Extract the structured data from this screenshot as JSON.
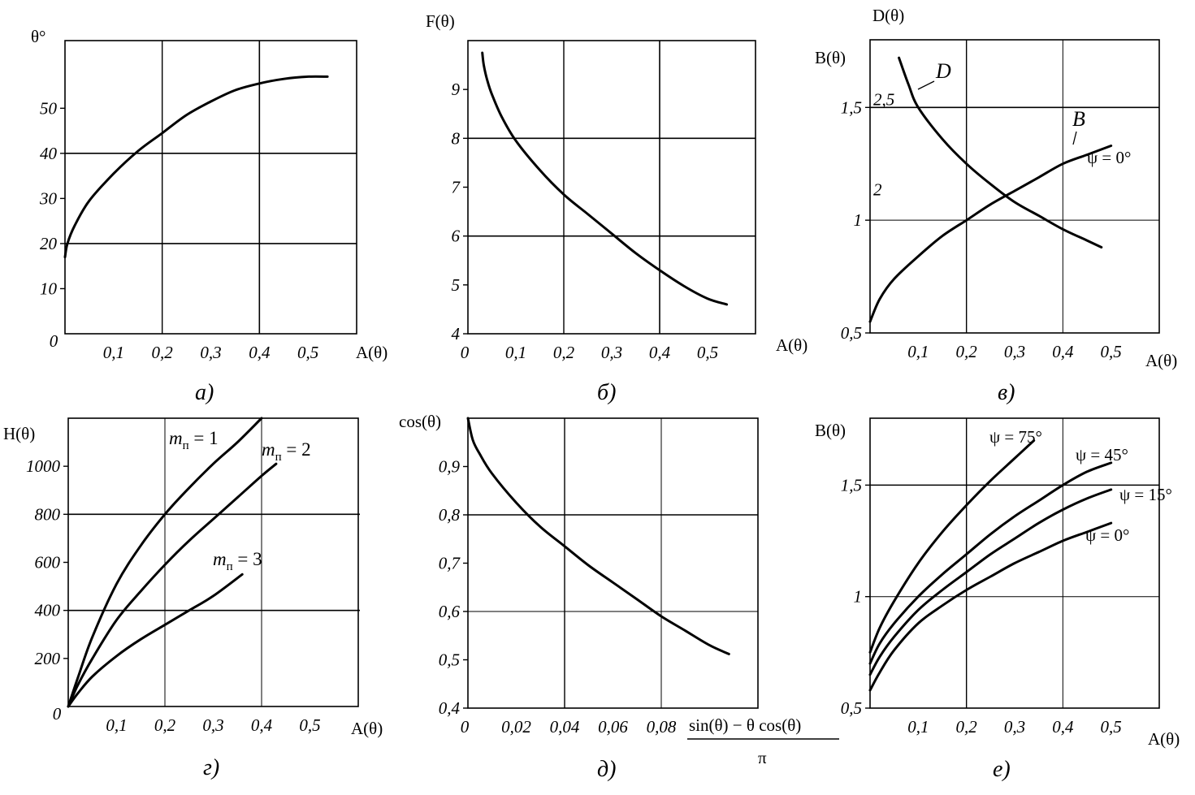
{
  "chart_data": [
    {
      "id": "a",
      "type": "line",
      "caption": "а)",
      "xlabel": "A(θ)",
      "ylabel": "θ°",
      "xlim": [
        0,
        0.6
      ],
      "ylim": [
        0,
        65
      ],
      "x_ticks": [
        {
          "v": 0.1,
          "t": "0,1"
        },
        {
          "v": 0.2,
          "t": "0,2"
        },
        {
          "v": 0.3,
          "t": "0,3"
        },
        {
          "v": 0.4,
          "t": "0,4"
        },
        {
          "v": 0.5,
          "t": "0,5"
        }
      ],
      "y_ticks": [
        {
          "v": 10,
          "t": "10"
        },
        {
          "v": 20,
          "t": "20"
        },
        {
          "v": 30,
          "t": "30"
        },
        {
          "v": 40,
          "t": "40"
        },
        {
          "v": 50,
          "t": "50"
        }
      ],
      "origin_label": "0",
      "grid_x": [
        0.2,
        0.4
      ],
      "grid_y": [
        20,
        40
      ],
      "grid": true,
      "series": [
        {
          "x": [
            0,
            0.005,
            0.02,
            0.05,
            0.1,
            0.15,
            0.2,
            0.25,
            0.3,
            0.35,
            0.4,
            0.45,
            0.5,
            0.54
          ],
          "y": [
            17,
            20,
            24,
            29.5,
            35.5,
            40.5,
            44.5,
            48.5,
            51.5,
            54,
            55.5,
            56.5,
            57,
            57
          ]
        }
      ]
    },
    {
      "id": "b",
      "type": "line",
      "caption": "б)",
      "xlabel": "A(θ)",
      "ylabel": "F(θ)",
      "xlim": [
        0,
        0.6
      ],
      "ylim": [
        4,
        10
      ],
      "x_ticks": [
        {
          "v": 0.1,
          "t": "0,1"
        },
        {
          "v": 0.2,
          "t": "0,2"
        },
        {
          "v": 0.3,
          "t": "0,3"
        },
        {
          "v": 0.4,
          "t": "0,4"
        },
        {
          "v": 0.5,
          "t": "0,5"
        }
      ],
      "y_ticks": [
        {
          "v": 4,
          "t": "4"
        },
        {
          "v": 5,
          "t": "5"
        },
        {
          "v": 6,
          "t": "6"
        },
        {
          "v": 7,
          "t": "7"
        },
        {
          "v": 8,
          "t": "8"
        },
        {
          "v": 9,
          "t": "9"
        }
      ],
      "origin_label": "0",
      "grid_x": [
        0.2,
        0.4
      ],
      "grid_y": [
        6,
        8
      ],
      "grid": true,
      "series": [
        {
          "x": [
            0.03,
            0.033,
            0.04,
            0.05,
            0.07,
            0.1,
            0.15,
            0.2,
            0.25,
            0.3,
            0.35,
            0.4,
            0.45,
            0.5,
            0.54
          ],
          "y": [
            9.75,
            9.5,
            9.2,
            8.9,
            8.45,
            7.95,
            7.35,
            6.85,
            6.45,
            6.05,
            5.65,
            5.3,
            4.98,
            4.72,
            4.6
          ]
        }
      ]
    },
    {
      "id": "v",
      "type": "line",
      "caption": "в)",
      "xlabel": "A(θ)",
      "ylabel": "B(θ)",
      "ylabel2": "D(θ)",
      "xlim": [
        0,
        0.6
      ],
      "ylim": [
        0.5,
        1.8
      ],
      "x_ticks": [
        {
          "v": 0.1,
          "t": "0,1"
        },
        {
          "v": 0.2,
          "t": "0,2"
        },
        {
          "v": 0.3,
          "t": "0,3"
        },
        {
          "v": 0.4,
          "t": "0,4"
        },
        {
          "v": 0.5,
          "t": "0,5"
        }
      ],
      "y_ticks": [
        {
          "v": 0.5,
          "t": "0,5"
        },
        {
          "v": 1,
          "t": "1"
        },
        {
          "v": 1.5,
          "t": "1,5"
        }
      ],
      "y2_ticks": [
        {
          "v": 1.5,
          "t": "2,5"
        },
        {
          "v": 1.1,
          "t": "2"
        }
      ],
      "grid_x": [
        0.2,
        0.4
      ],
      "grid_y": [
        1,
        1.5
      ],
      "grid": true,
      "series": [
        {
          "name": "B",
          "x": [
            0,
            0.02,
            0.05,
            0.1,
            0.15,
            0.2,
            0.25,
            0.3,
            0.35,
            0.4,
            0.45,
            0.5
          ],
          "y": [
            0.55,
            0.65,
            0.74,
            0.84,
            0.93,
            1.0,
            1.07,
            1.13,
            1.19,
            1.25,
            1.29,
            1.33
          ]
        },
        {
          "name": "D",
          "x": [
            0.06,
            0.08,
            0.1,
            0.15,
            0.2,
            0.25,
            0.3,
            0.35,
            0.4,
            0.45,
            0.48
          ],
          "y": [
            1.72,
            1.6,
            1.5,
            1.36,
            1.25,
            1.16,
            1.08,
            1.02,
            0.96,
            0.91,
            0.88
          ]
        }
      ],
      "annotations": [
        "D",
        "B",
        "ψ = 0°"
      ]
    },
    {
      "id": "g",
      "type": "line",
      "caption": "г)",
      "xlabel": "A(θ)",
      "ylabel": "H(θ)",
      "xlim": [
        0,
        0.6
      ],
      "ylim": [
        0,
        1200
      ],
      "x_ticks": [
        {
          "v": 0.1,
          "t": "0,1"
        },
        {
          "v": 0.2,
          "t": "0,2"
        },
        {
          "v": 0.3,
          "t": "0,3"
        },
        {
          "v": 0.4,
          "t": "0,4"
        },
        {
          "v": 0.5,
          "t": "0,5"
        }
      ],
      "y_ticks": [
        {
          "v": 200,
          "t": "200"
        },
        {
          "v": 400,
          "t": "400"
        },
        {
          "v": 600,
          "t": "600"
        },
        {
          "v": 800,
          "t": "800"
        },
        {
          "v": 1000,
          "t": "1000"
        }
      ],
      "origin_label": "0",
      "grid_x": [
        0.2,
        0.4
      ],
      "grid_y": [
        400,
        800
      ],
      "grid": true,
      "series": [
        {
          "name": "mп = 1",
          "x": [
            0,
            0.02,
            0.05,
            0.1,
            0.15,
            0.2,
            0.25,
            0.3,
            0.35,
            0.4
          ],
          "y": [
            0,
            120,
            290,
            510,
            670,
            800,
            910,
            1010,
            1100,
            1200
          ]
        },
        {
          "name": "mп = 2",
          "x": [
            0,
            0.02,
            0.05,
            0.1,
            0.15,
            0.2,
            0.25,
            0.3,
            0.35,
            0.4,
            0.43
          ],
          "y": [
            0,
            90,
            200,
            360,
            480,
            590,
            690,
            780,
            870,
            960,
            1010
          ]
        },
        {
          "name": "mп = 3",
          "x": [
            0,
            0.02,
            0.05,
            0.1,
            0.15,
            0.2,
            0.25,
            0.3,
            0.36
          ],
          "y": [
            0,
            55,
            125,
            210,
            280,
            340,
            400,
            460,
            550
          ]
        }
      ]
    },
    {
      "id": "d",
      "type": "line",
      "caption": "д)",
      "xlabel_num": "sin(θ) − θ cos(θ)",
      "xlabel_den": "π",
      "ylabel": "cos(θ)",
      "xlim": [
        0,
        0.12
      ],
      "ylim": [
        0.4,
        1.0
      ],
      "x_ticks": [
        {
          "v": 0.02,
          "t": "0,02"
        },
        {
          "v": 0.04,
          "t": "0,04"
        },
        {
          "v": 0.06,
          "t": "0,06"
        },
        {
          "v": 0.08,
          "t": "0,08"
        }
      ],
      "y_ticks": [
        {
          "v": 0.4,
          "t": "0,4"
        },
        {
          "v": 0.5,
          "t": "0,5"
        },
        {
          "v": 0.6,
          "t": "0,6"
        },
        {
          "v": 0.7,
          "t": "0,7"
        },
        {
          "v": 0.8,
          "t": "0,8"
        },
        {
          "v": 0.9,
          "t": "0,9"
        }
      ],
      "origin_label": "0",
      "grid_x": [
        0.04,
        0.08
      ],
      "grid_y": [
        0.6,
        0.8
      ],
      "grid": true,
      "series": [
        {
          "x": [
            0,
            0.002,
            0.005,
            0.01,
            0.02,
            0.03,
            0.04,
            0.05,
            0.06,
            0.07,
            0.08,
            0.09,
            0.1,
            0.108
          ],
          "y": [
            1.0,
            0.955,
            0.925,
            0.885,
            0.825,
            0.775,
            0.735,
            0.695,
            0.66,
            0.625,
            0.59,
            0.56,
            0.53,
            0.512
          ]
        }
      ]
    },
    {
      "id": "e",
      "type": "line",
      "caption": "е)",
      "xlabel": "A(θ)",
      "ylabel": "B(θ)",
      "xlim": [
        0,
        0.6
      ],
      "ylim": [
        0.5,
        1.8
      ],
      "x_ticks": [
        {
          "v": 0.1,
          "t": "0,1"
        },
        {
          "v": 0.2,
          "t": "0,2"
        },
        {
          "v": 0.3,
          "t": "0,3"
        },
        {
          "v": 0.4,
          "t": "0,4"
        },
        {
          "v": 0.5,
          "t": "0,5"
        }
      ],
      "y_ticks": [
        {
          "v": 0.5,
          "t": "0,5"
        },
        {
          "v": 1,
          "t": "1"
        },
        {
          "v": 1.5,
          "t": "1,5"
        }
      ],
      "grid_x": [
        0.2,
        0.4
      ],
      "grid_y": [
        1,
        1.5
      ],
      "grid": true,
      "series": [
        {
          "name": "ψ = 75°",
          "x": [
            0,
            0.02,
            0.05,
            0.1,
            0.15,
            0.2,
            0.25,
            0.3,
            0.34
          ],
          "y": [
            0.75,
            0.86,
            0.98,
            1.15,
            1.29,
            1.41,
            1.52,
            1.62,
            1.7
          ]
        },
        {
          "name": "ψ = 45°",
          "x": [
            0,
            0.02,
            0.05,
            0.1,
            0.15,
            0.2,
            0.25,
            0.3,
            0.35,
            0.4,
            0.45,
            0.5
          ],
          "y": [
            0.7,
            0.79,
            0.88,
            1.0,
            1.1,
            1.19,
            1.28,
            1.36,
            1.43,
            1.5,
            1.56,
            1.6
          ]
        },
        {
          "name": "ψ = 15°",
          "x": [
            0,
            0.02,
            0.05,
            0.1,
            0.15,
            0.2,
            0.25,
            0.3,
            0.35,
            0.4,
            0.45,
            0.5
          ],
          "y": [
            0.65,
            0.73,
            0.82,
            0.94,
            1.03,
            1.11,
            1.19,
            1.26,
            1.33,
            1.39,
            1.44,
            1.48
          ]
        },
        {
          "name": "ψ = 0°",
          "x": [
            0,
            0.02,
            0.05,
            0.1,
            0.15,
            0.2,
            0.25,
            0.3,
            0.35,
            0.4,
            0.45,
            0.5
          ],
          "y": [
            0.58,
            0.66,
            0.76,
            0.88,
            0.96,
            1.03,
            1.09,
            1.15,
            1.2,
            1.25,
            1.29,
            1.33
          ]
        }
      ]
    }
  ],
  "labels": {
    "a_ylabel": "θ°",
    "a_xlabel": "A(θ)",
    "a_caption": "а)",
    "b_ylabel": "F(θ)",
    "b_xlabel": "A(θ)",
    "b_caption": "б)",
    "v_ylabel_top": "D(θ)",
    "v_ylabel": "B(θ)",
    "v_xlabel": "A(θ)",
    "v_caption": "в)",
    "v_label_D": "D",
    "v_label_B": "B",
    "v_label_psi": "ψ = 0°",
    "g_ylabel": "H(θ)",
    "g_xlabel": "A(θ)",
    "g_caption": "г)",
    "g_m1_m": "m",
    "g_m1_sub": "п",
    "g_m1_eq": " = 1",
    "g_m2_m": "m",
    "g_m2_sub": "п",
    "g_m2_eq": " = 2",
    "g_m3_m": "m",
    "g_m3_sub": "п",
    "g_m3_eq": " = 3",
    "d_ylabel": "cos(θ)",
    "d_xlabel_num": "sin(θ) − θ cos(θ)",
    "d_xlabel_den": "π",
    "d_caption": "д)",
    "e_ylabel": "B(θ)",
    "e_xlabel": "A(θ)",
    "e_caption": "е)",
    "e_psi75": "ψ = 75°",
    "e_psi45": "ψ = 45°",
    "e_psi15": "ψ = 15°",
    "e_psi0": "ψ = 0°"
  }
}
